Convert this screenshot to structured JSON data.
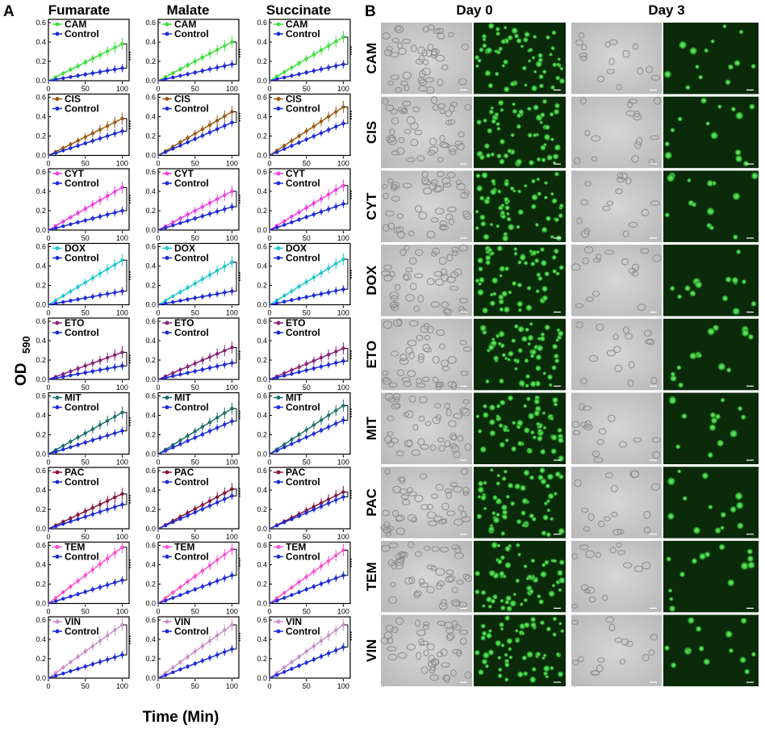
{
  "panel_a_letter": "A",
  "panel_b_letter": "B",
  "y_axis_title": "OD",
  "y_axis_subscript": "590",
  "x_axis_title": "Time (Min)",
  "column_titles": [
    "Fumarate",
    "Malate",
    "Succinate"
  ],
  "day_titles": [
    "Day 0",
    "Day 3"
  ],
  "control_label": "Control",
  "colors": {
    "control": "#1d2bd6",
    "CAM": "#3de03d",
    "CIS": "#9a5a12",
    "CYT": "#f03ee0",
    "DOX": "#20c8d0",
    "ETO": "#8a207a",
    "MIT": "#1f6f6a",
    "PAC": "#8a1438",
    "TEM": "#ff4fd0",
    "VIN": "#c890c8",
    "fluor_bg": "#0a2a0a",
    "fluor_cell": "#3cc83c",
    "bright_bg": "#c9c9c9"
  },
  "chart_data": {
    "type": "line",
    "xlabel": "Time (Min)",
    "ylabel": "OD590",
    "xlim": [
      0,
      105
    ],
    "ylim": [
      0,
      0.6
    ],
    "x_ticks": [
      "0",
      "50",
      "100"
    ],
    "y_ticks": [
      "0.0",
      "0.2",
      "0.4",
      "0.6"
    ],
    "x": [
      0,
      10,
      20,
      30,
      40,
      50,
      60,
      70,
      80,
      90,
      100
    ],
    "substrates": [
      "Fumarate",
      "Malate",
      "Succinate"
    ],
    "panels": [
      {
        "drug": "CAM",
        "drug_final": [
          0.38,
          0.4,
          0.45
        ],
        "control_final": [
          0.13,
          0.17,
          0.17
        ]
      },
      {
        "drug": "CIS",
        "drug_final": [
          0.38,
          0.45,
          0.5
        ],
        "control_final": [
          0.25,
          0.34,
          0.33
        ]
      },
      {
        "drug": "CYT",
        "drug_final": [
          0.44,
          0.4,
          0.46
        ],
        "control_final": [
          0.2,
          0.24,
          0.27
        ]
      },
      {
        "drug": "DOX",
        "drug_final": [
          0.46,
          0.44,
          0.47
        ],
        "control_final": [
          0.14,
          0.14,
          0.16
        ]
      },
      {
        "drug": "ETO",
        "drug_final": [
          0.28,
          0.33,
          0.32
        ],
        "control_final": [
          0.14,
          0.17,
          0.19
        ]
      },
      {
        "drug": "MIT",
        "drug_final": [
          0.43,
          0.47,
          0.5
        ],
        "control_final": [
          0.24,
          0.34,
          0.35
        ]
      },
      {
        "drug": "PAC",
        "drug_final": [
          0.36,
          0.41,
          0.38
        ],
        "control_final": [
          0.25,
          0.34,
          0.33
        ]
      },
      {
        "drug": "TEM",
        "drug_final": [
          0.58,
          0.56,
          0.55
        ],
        "control_final": [
          0.24,
          0.29,
          0.29
        ]
      },
      {
        "drug": "VIN",
        "drug_final": [
          0.55,
          0.55,
          0.55
        ],
        "control_final": [
          0.24,
          0.3,
          0.32
        ]
      }
    ]
  }
}
